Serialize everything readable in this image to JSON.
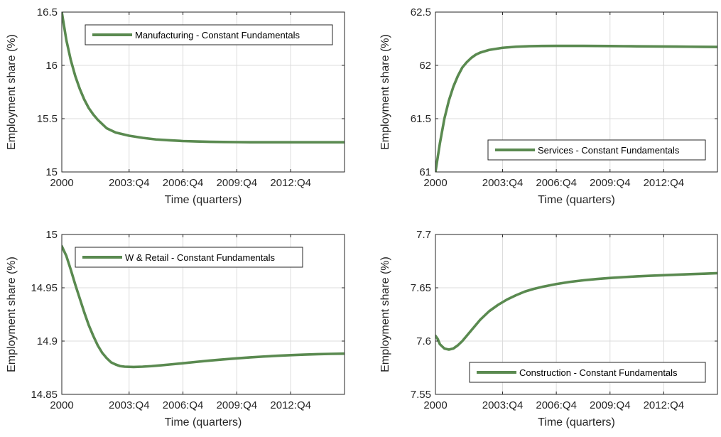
{
  "series_color": "#5a8a50",
  "chart_data": [
    {
      "type": "line",
      "xlabel": "Time (quarters)",
      "ylabel": "Employment share (%)",
      "x_tick_labels": [
        "2000",
        "2003:Q4",
        "2006:Q4",
        "2009:Q4",
        "2012:Q4"
      ],
      "x_tick_quarters": [
        0,
        15,
        27,
        39,
        51
      ],
      "xlim": [
        0,
        63
      ],
      "ylim": [
        15,
        16.5
      ],
      "y_ticks": [
        15,
        15.5,
        16,
        16.5
      ],
      "y_tick_labels": [
        "15",
        "15.5",
        "16",
        "16.5"
      ],
      "grid": true,
      "legend_position": "top-right",
      "series": [
        {
          "name": "Manufacturing - Constant Fundamentals",
          "x": [
            0,
            1,
            2,
            3,
            4,
            5,
            6,
            7,
            8,
            9,
            10,
            12,
            15,
            18,
            21,
            24,
            27,
            30,
            33,
            36,
            39,
            42,
            45,
            48,
            51,
            54,
            57,
            60,
            63
          ],
          "y": [
            16.5,
            16.24,
            16.05,
            15.9,
            15.78,
            15.68,
            15.6,
            15.54,
            15.49,
            15.45,
            15.41,
            15.37,
            15.34,
            15.32,
            15.305,
            15.297,
            15.29,
            15.286,
            15.283,
            15.281,
            15.28,
            15.279,
            15.279,
            15.279,
            15.279,
            15.279,
            15.279,
            15.279,
            15.279
          ]
        }
      ]
    },
    {
      "type": "line",
      "xlabel": "Time (quarters)",
      "ylabel": "Employment share (%)",
      "x_tick_labels": [
        "2000",
        "2003:Q4",
        "2006:Q4",
        "2009:Q4",
        "2012:Q4"
      ],
      "x_tick_quarters": [
        0,
        15,
        27,
        39,
        51
      ],
      "xlim": [
        0,
        63
      ],
      "ylim": [
        61,
        62.5
      ],
      "y_ticks": [
        61,
        61.5,
        62,
        62.5
      ],
      "y_tick_labels": [
        "61",
        "61.5",
        "62",
        "62.5"
      ],
      "grid": true,
      "legend_position": "bottom-right",
      "series": [
        {
          "name": "Services - Constant Fundamentals",
          "x": [
            0,
            1,
            2,
            3,
            4,
            5,
            6,
            7,
            8,
            9,
            10,
            12,
            15,
            18,
            21,
            24,
            27,
            30,
            33,
            36,
            39,
            42,
            45,
            48,
            51,
            54,
            57,
            60,
            63
          ],
          "y": [
            61.0,
            61.27,
            61.5,
            61.67,
            61.8,
            61.9,
            61.98,
            62.03,
            62.07,
            62.1,
            62.12,
            62.145,
            62.165,
            62.175,
            62.18,
            62.182,
            62.183,
            62.183,
            62.183,
            62.182,
            62.181,
            62.18,
            62.179,
            62.178,
            62.177,
            62.176,
            62.175,
            62.174,
            62.173
          ]
        }
      ]
    },
    {
      "type": "line",
      "xlabel": "Time (quarters)",
      "ylabel": "Employment share (%)",
      "x_tick_labels": [
        "2000",
        "2003:Q4",
        "2006:Q4",
        "2009:Q4",
        "2012:Q4"
      ],
      "x_tick_quarters": [
        0,
        15,
        27,
        39,
        51
      ],
      "xlim": [
        0,
        63
      ],
      "ylim": [
        14.85,
        15
      ],
      "y_ticks": [
        14.85,
        14.9,
        14.95,
        15
      ],
      "y_tick_labels": [
        "14.85",
        "14.9",
        "14.95",
        "15"
      ],
      "grid": true,
      "legend_position": "top-right",
      "series": [
        {
          "name": "W & Retail - Constant Fundamentals",
          "x": [
            0,
            1,
            2,
            3,
            4,
            5,
            6,
            7,
            8,
            9,
            10,
            11,
            12,
            13,
            14,
            16,
            18,
            20,
            22,
            24,
            27,
            30,
            33,
            36,
            39,
            42,
            45,
            48,
            51,
            54,
            57,
            60,
            63
          ],
          "y": [
            14.989,
            14.98,
            14.967,
            14.953,
            14.94,
            14.927,
            14.915,
            14.905,
            14.896,
            14.889,
            14.884,
            14.88,
            14.878,
            14.8765,
            14.876,
            14.8757,
            14.876,
            14.8765,
            14.8772,
            14.878,
            14.8792,
            14.8805,
            14.8817,
            14.8828,
            14.8838,
            14.8847,
            14.8855,
            14.8862,
            14.8868,
            14.8873,
            14.8877,
            14.888,
            14.8882
          ]
        }
      ]
    },
    {
      "type": "line",
      "xlabel": "Time (quarters)",
      "ylabel": "Employment share (%)",
      "x_tick_labels": [
        "2000",
        "2003:Q4",
        "2006:Q4",
        "2009:Q4",
        "2012:Q4"
      ],
      "x_tick_quarters": [
        0,
        15,
        27,
        39,
        51
      ],
      "xlim": [
        0,
        63
      ],
      "ylim": [
        7.55,
        7.7
      ],
      "y_ticks": [
        7.55,
        7.6,
        7.65,
        7.7
      ],
      "y_tick_labels": [
        "7.55",
        "7.6",
        "7.65",
        "7.7"
      ],
      "grid": true,
      "legend_position": "bottom-right",
      "series": [
        {
          "name": "Construction - Constant Fundamentals",
          "x": [
            0,
            0.5,
            1,
            2,
            3,
            4,
            5,
            6,
            7,
            8,
            9,
            10,
            12,
            14,
            16,
            18,
            20,
            22,
            24,
            27,
            30,
            33,
            36,
            39,
            42,
            45,
            48,
            51,
            54,
            57,
            60,
            63
          ],
          "y": [
            7.605,
            7.602,
            7.597,
            7.593,
            7.592,
            7.593,
            7.596,
            7.6,
            7.605,
            7.61,
            7.615,
            7.62,
            7.628,
            7.634,
            7.639,
            7.643,
            7.6465,
            7.649,
            7.651,
            7.6535,
            7.6555,
            7.657,
            7.6582,
            7.6592,
            7.66,
            7.6607,
            7.6613,
            7.6618,
            7.6623,
            7.6628,
            7.6632,
            7.6637
          ]
        }
      ]
    }
  ]
}
